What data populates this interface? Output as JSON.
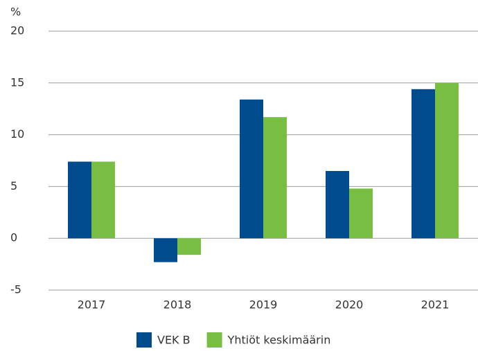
{
  "chart_data": {
    "type": "bar",
    "y_label": "%",
    "categories": [
      "2017",
      "2018",
      "2019",
      "2020",
      "2021"
    ],
    "series": [
      {
        "name": "VEK B",
        "color": "#004b8d",
        "values": [
          7.4,
          -2.3,
          13.4,
          6.5,
          14.4
        ]
      },
      {
        "name": "Yhtiöt keskimäärin",
        "color": "#78be43",
        "values": [
          7.4,
          -1.6,
          11.7,
          4.8,
          15.0
        ]
      }
    ],
    "ylim": [
      -5,
      20
    ],
    "yticks": [
      -5,
      0,
      5,
      10,
      15,
      20
    ],
    "grid": true,
    "legend": "bottom"
  }
}
